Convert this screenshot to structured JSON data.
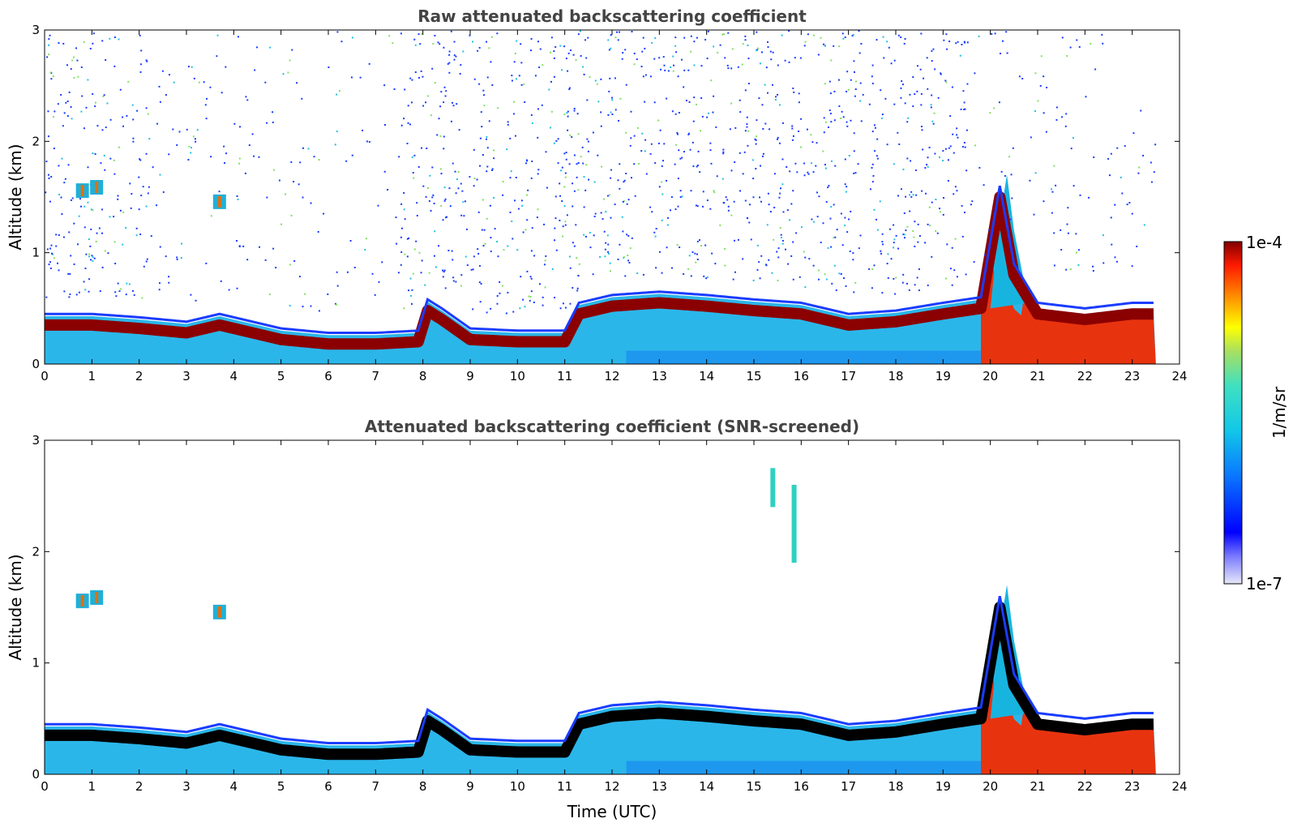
{
  "colors": {
    "boundary_layer": "#8b0000",
    "cloud_high": "#e8330f",
    "aerosol_low": "#20b2e8",
    "noise": "#1a3cff",
    "screened_core": "#000000"
  },
  "chart_data": [
    {
      "type": "heatmap",
      "title": "Raw attenuated backscattering coefficient",
      "xlabel": "",
      "ylabel": "Altitude (km)",
      "xlim": [
        0,
        24
      ],
      "ylim": [
        0,
        3
      ],
      "xticks": [
        "0",
        "1",
        "2",
        "3",
        "4",
        "5",
        "6",
        "7",
        "8",
        "9",
        "10",
        "11",
        "12",
        "13",
        "14",
        "15",
        "16",
        "17",
        "18",
        "19",
        "20",
        "21",
        "22",
        "23",
        "24"
      ],
      "yticks": [
        "0",
        "1",
        "2",
        "3"
      ],
      "layer_top_km": {
        "time": [
          0,
          1,
          2,
          3,
          3.7,
          4,
          5,
          6,
          7,
          7.9,
          8.1,
          8.4,
          9,
          10,
          11,
          11.3,
          12,
          13,
          14,
          15,
          16,
          17,
          18,
          19,
          19.8,
          20.2,
          20.5,
          21,
          22,
          23,
          23.5
        ],
        "top": [
          0.45,
          0.45,
          0.42,
          0.38,
          0.45,
          0.42,
          0.32,
          0.28,
          0.28,
          0.3,
          0.58,
          0.5,
          0.32,
          0.3,
          0.3,
          0.55,
          0.62,
          0.65,
          0.62,
          0.58,
          0.55,
          0.45,
          0.48,
          0.55,
          0.6,
          1.6,
          0.9,
          0.55,
          0.5,
          0.55,
          0.55
        ]
      }
    },
    {
      "type": "heatmap",
      "title": "Attenuated backscattering coefficient (SNR-screened)",
      "xlabel": "Time (UTC)",
      "ylabel": "Altitude (km)",
      "xlim": [
        0,
        24
      ],
      "ylim": [
        0,
        3
      ],
      "xticks": [
        "0",
        "1",
        "2",
        "3",
        "4",
        "5",
        "6",
        "7",
        "8",
        "9",
        "10",
        "11",
        "12",
        "13",
        "14",
        "15",
        "16",
        "17",
        "18",
        "19",
        "20",
        "21",
        "22",
        "23",
        "24"
      ],
      "yticks": [
        "0",
        "1",
        "2",
        "3"
      ]
    }
  ],
  "colorbar": {
    "label": "1/m/sr",
    "max_label": "1e-4",
    "min_label": "1e-7",
    "range": [
      1e-07,
      0.0001
    ],
    "scale": "log",
    "colormap": "jet"
  }
}
